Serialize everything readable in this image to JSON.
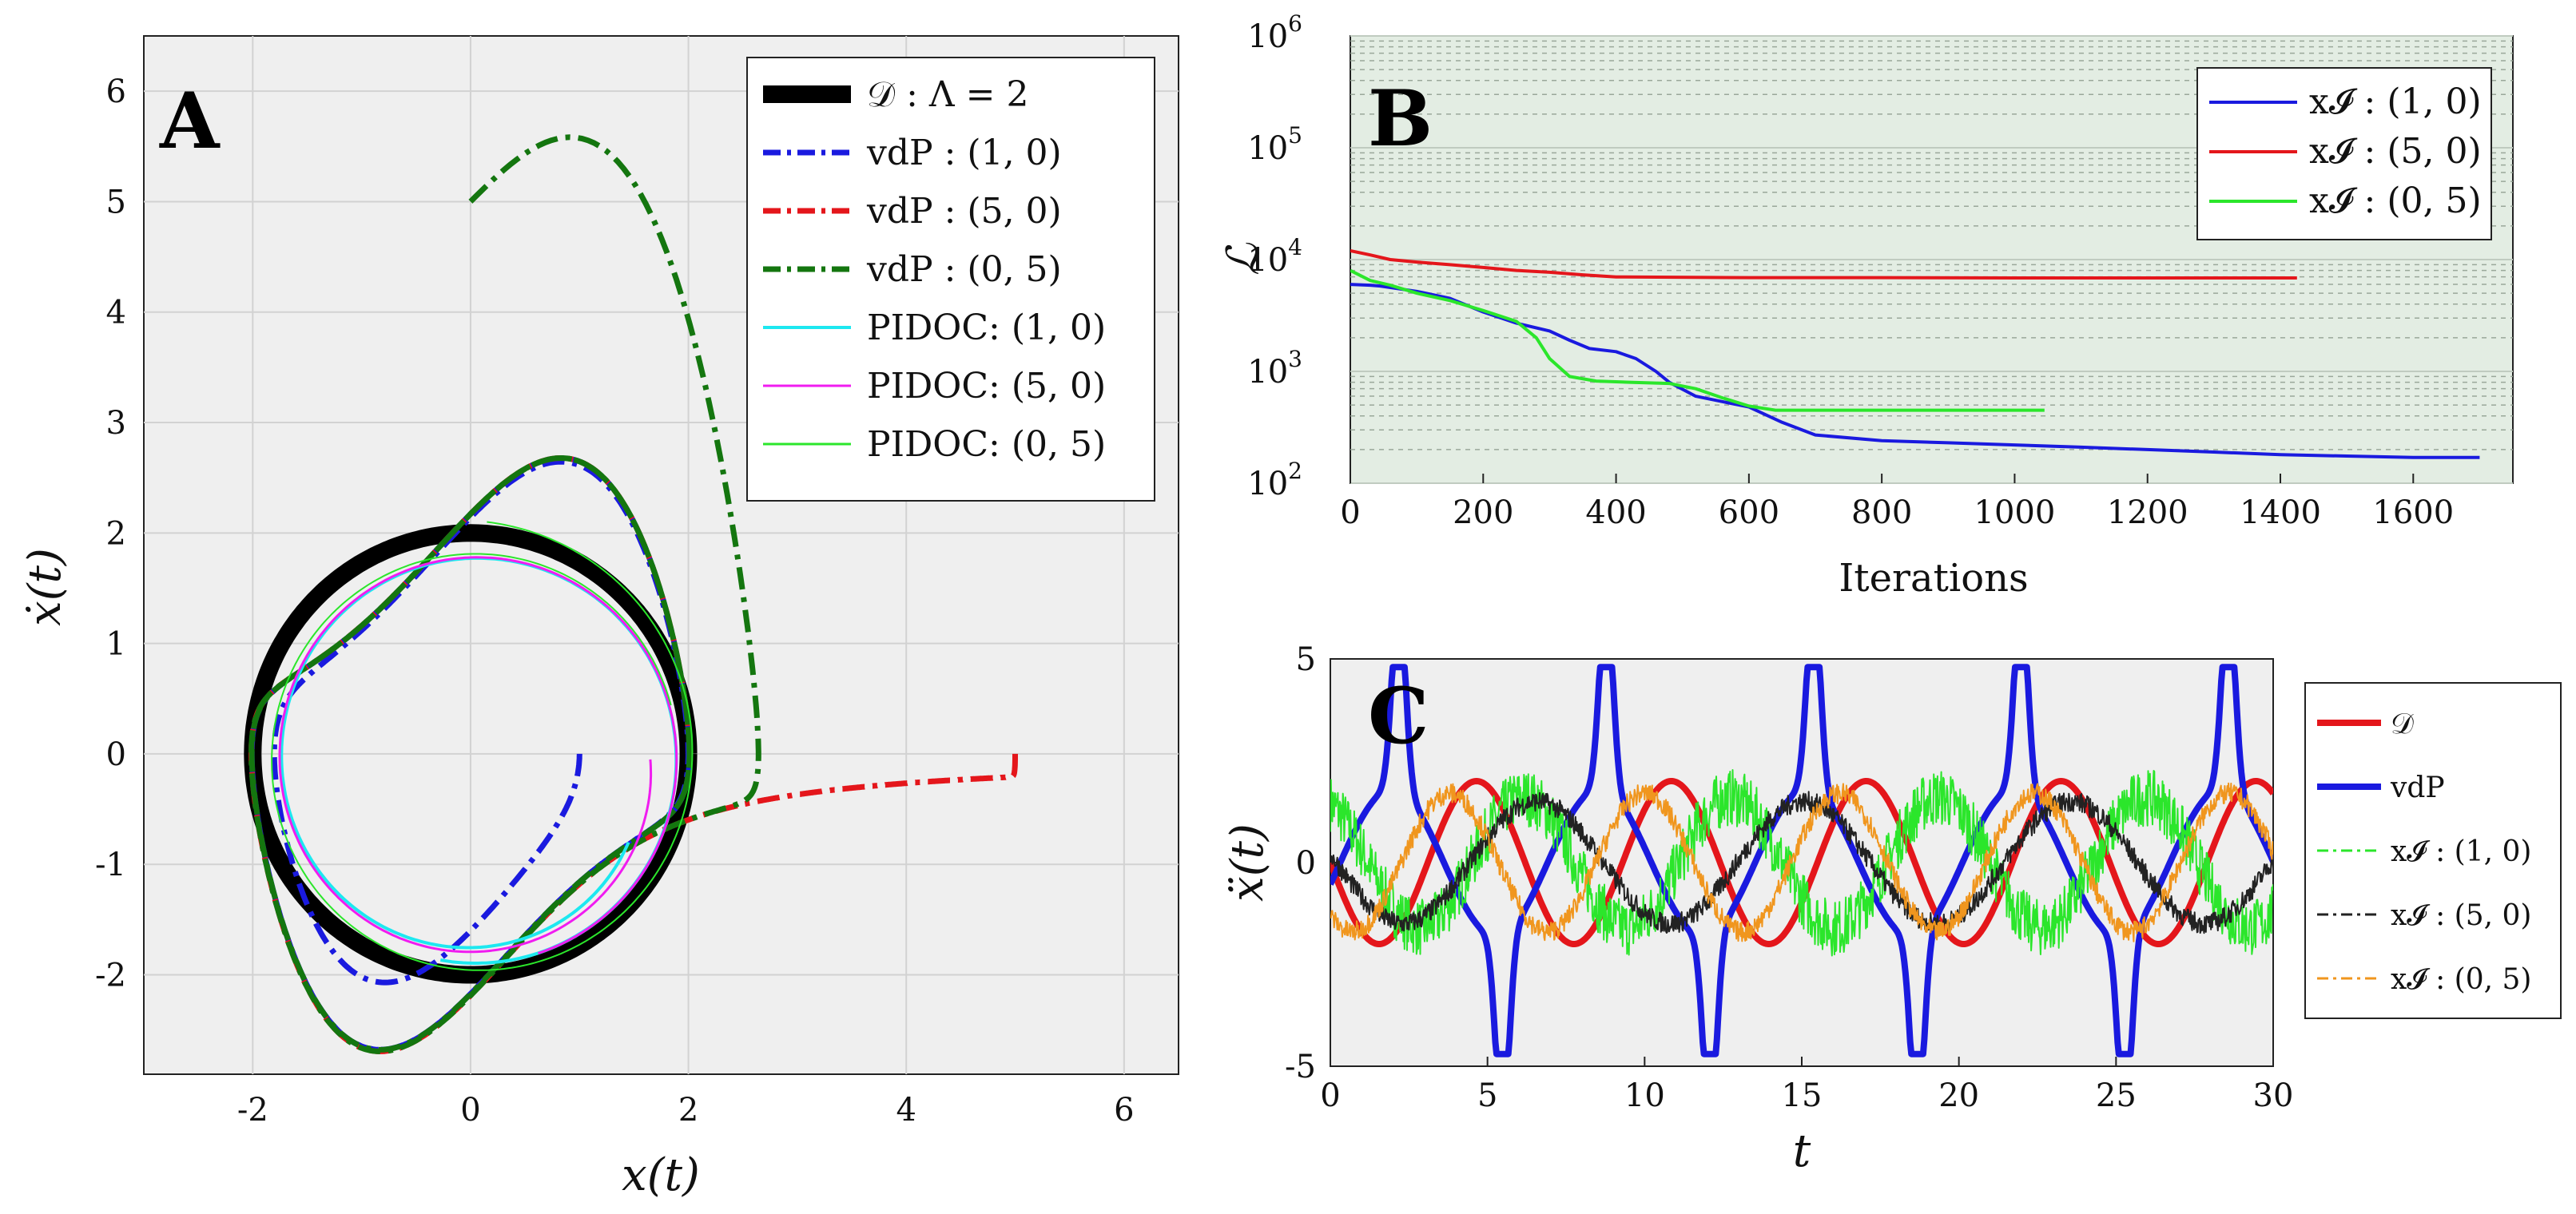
{
  "chart_data": [
    {
      "id": "A",
      "type": "line",
      "panel_label": "A",
      "xlabel": "x(t)",
      "ylabel": "ẋ(t)",
      "xlim": [
        -3,
        6.5
      ],
      "ylim": [
        -2.9,
        6.5
      ],
      "xticks": [
        -2,
        0,
        2,
        4,
        6
      ],
      "yticks": [
        -2,
        -1,
        0,
        1,
        2,
        3,
        4,
        5,
        6
      ],
      "xtick_labels": [
        "-2",
        "0",
        "2",
        "4",
        "6"
      ],
      "ytick_labels": [
        "-2",
        "-1",
        "0",
        "1",
        "2",
        "3",
        "4",
        "5",
        "6"
      ],
      "grid": true,
      "legend": "top-right",
      "series": [
        {
          "name": "𝒟 : Λ = 2",
          "color": "#000000",
          "width": 22,
          "dash": "",
          "kind": "circle",
          "radius": 2
        },
        {
          "name": "vdP : (1, 0)",
          "color": "#1a1adf",
          "width": 7,
          "dash": "28 10 6 10",
          "kind": "vdp",
          "start": [
            1,
            0
          ]
        },
        {
          "name": "vdP : (5, 0)",
          "color": "#e4161b",
          "width": 7,
          "dash": "28 10 6 10",
          "kind": "vdp",
          "start": [
            5,
            0
          ]
        },
        {
          "name": "vdP : (0, 5)",
          "color": "#14760f",
          "width": 7,
          "dash": "28 10 6 10",
          "kind": "vdp",
          "start": [
            0,
            5
          ]
        },
        {
          "name": "PIDOC: (1, 0)",
          "color": "#1de8f0",
          "width": 4,
          "dash": "",
          "kind": "pidoc",
          "start": [
            1.4,
            -0.75
          ]
        },
        {
          "name": "PIDOC: (5, 0)",
          "color": "#f01cf0",
          "width": 3,
          "dash": "",
          "kind": "pidoc",
          "start": [
            1.6,
            0
          ]
        },
        {
          "name": "PIDOC: (0, 5)",
          "color": "#2be62b",
          "width": 2,
          "dash": "",
          "kind": "pidoc",
          "start": [
            0.1,
            2.15
          ]
        }
      ]
    },
    {
      "id": "B",
      "type": "line",
      "panel_label": "B",
      "xlabel": "Iterations",
      "ylabel": "ℒ",
      "yscale": "log",
      "xlim": [
        0,
        1750
      ],
      "ylim": [
        100,
        1000000
      ],
      "xticks": [
        0,
        200,
        400,
        600,
        800,
        1000,
        1200,
        1400,
        1600
      ],
      "xtick_labels": [
        "0",
        "200",
        "400",
        "600",
        "800",
        "1000",
        "1200",
        "1400",
        "1600"
      ],
      "yticks": [
        100,
        1000,
        10000,
        100000,
        1000000
      ],
      "ytick_labels": [
        [
          "10",
          "2"
        ],
        [
          "10",
          "3"
        ],
        [
          "10",
          "4"
        ],
        [
          "10",
          "5"
        ],
        [
          "10",
          "6"
        ]
      ],
      "grid": true,
      "legend": "top-right",
      "series": [
        {
          "name": "x𝓘 : (1, 0)",
          "color": "#1a1adf",
          "points": [
            [
              0,
              6000
            ],
            [
              30,
              5900
            ],
            [
              45,
              5800
            ],
            [
              100,
              5200
            ],
            [
              150,
              4500
            ],
            [
              200,
              3400
            ],
            [
              250,
              2700
            ],
            [
              300,
              2300
            ],
            [
              330,
              1900
            ],
            [
              360,
              1600
            ],
            [
              400,
              1500
            ],
            [
              430,
              1300
            ],
            [
              460,
              1000
            ],
            [
              480,
              800
            ],
            [
              520,
              600
            ],
            [
              600,
              480
            ],
            [
              650,
              350
            ],
            [
              700,
              270
            ],
            [
              800,
              240
            ],
            [
              900,
              230
            ],
            [
              1000,
              220
            ],
            [
              1100,
              210
            ],
            [
              1200,
              200
            ],
            [
              1300,
              190
            ],
            [
              1400,
              180
            ],
            [
              1500,
              175
            ],
            [
              1600,
              170
            ],
            [
              1700,
              170
            ]
          ]
        },
        {
          "name": "x𝓘 : (5, 0)",
          "color": "#e4161b",
          "points": [
            [
              0,
              12000
            ],
            [
              30,
              11000
            ],
            [
              60,
              10000
            ],
            [
              100,
              9500
            ],
            [
              150,
              9000
            ],
            [
              200,
              8500
            ],
            [
              250,
              8000
            ],
            [
              300,
              7700
            ],
            [
              350,
              7300
            ],
            [
              400,
              7000
            ],
            [
              600,
              6900
            ],
            [
              800,
              6900
            ],
            [
              1000,
              6850
            ],
            [
              1200,
              6850
            ],
            [
              1425,
              6850
            ]
          ]
        },
        {
          "name": "x𝓘 : (0, 5)",
          "color": "#2be62b",
          "points": [
            [
              0,
              8000
            ],
            [
              30,
              6500
            ],
            [
              60,
              5900
            ],
            [
              100,
              5000
            ],
            [
              150,
              4300
            ],
            [
              200,
              3500
            ],
            [
              250,
              2800
            ],
            [
              280,
              2000
            ],
            [
              300,
              1300
            ],
            [
              330,
              900
            ],
            [
              370,
              820
            ],
            [
              420,
              800
            ],
            [
              480,
              780
            ],
            [
              520,
              700
            ],
            [
              560,
              580
            ],
            [
              600,
              490
            ],
            [
              640,
              450
            ],
            [
              700,
              450
            ],
            [
              800,
              450
            ],
            [
              900,
              450
            ],
            [
              1000,
              450
            ],
            [
              1045,
              450
            ]
          ]
        }
      ]
    },
    {
      "id": "C",
      "type": "line",
      "panel_label": "C",
      "xlabel": "t",
      "ylabel": "ẍ(t)",
      "xlim": [
        0,
        30
      ],
      "ylim": [
        -5,
        5
      ],
      "xticks": [
        0,
        5,
        10,
        15,
        20,
        25,
        30
      ],
      "xtick_labels": [
        "0",
        "5",
        "10",
        "15",
        "20",
        "25",
        "30"
      ],
      "yticks": [
        -5,
        0,
        5
      ],
      "ytick_labels": [
        "-5",
        "0",
        "5"
      ],
      "grid": false,
      "legend": "outside-right",
      "series": [
        {
          "name": "𝒟",
          "color": "#e4161b",
          "width": 8,
          "kind": "sine",
          "amp": 2,
          "period": 6.2
        },
        {
          "name": "vdP",
          "color": "#1a1adf",
          "width": 8,
          "kind": "vdp",
          "peak": 4.8,
          "trough": -4.7,
          "period": 6.6
        },
        {
          "name": "x𝓘 : (1, 0)",
          "color": "#2be62b",
          "width": 2,
          "kind": "noisy",
          "amp": 1.6,
          "period": 6.6
        },
        {
          "name": "x𝓘 : (5, 0)",
          "color": "#222222",
          "width": 2,
          "kind": "noisy",
          "amp": 1.5,
          "period": 8.5
        },
        {
          "name": "x𝓘 : (0, 5)",
          "color": "#f0961e",
          "width": 2,
          "kind": "noisy",
          "amp": 1.7,
          "period": 6.2
        }
      ]
    }
  ]
}
